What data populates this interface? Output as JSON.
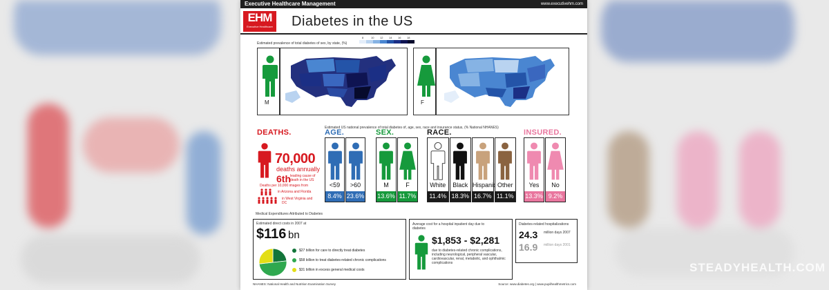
{
  "header": {
    "brand": "Executive Healthcare Management",
    "url": "www.executivehm.com"
  },
  "logo": {
    "text": "EHM",
    "subtext": "Executive Healthcare"
  },
  "title": "Diabetes in the US",
  "maps": {
    "caption": "Estimated prevalence of total diabetes of sex, by state, (%)",
    "scale_ticks": [
      "8",
      "10",
      "12",
      "14",
      "16",
      "18"
    ],
    "scale_colors": [
      "#e4eefa",
      "#b9d3f0",
      "#86b3e4",
      "#4a86d1",
      "#2454a8",
      "#1b2f85",
      "#0f1452",
      "#070a2c"
    ],
    "male_label": "M",
    "female_label": "F"
  },
  "deaths": {
    "heading": "DEATHS.",
    "number": "70,000",
    "annual": "deaths annually",
    "rank": "6th",
    "rank_text": "leading cause of death in the US",
    "equiv": "Deaths per 10,000 images from",
    "place1": "in Arizona and Florida",
    "place2": "in West Virginia and DC"
  },
  "prevalence_caption": "Estimated US national prevalence of total diabetes of, age, sex, race and insurance status, (% National NHANES)",
  "groups": {
    "age": {
      "heading": "AGE.",
      "color": "#2f6db5",
      "items": [
        {
          "label": "<59",
          "value": "8.4%"
        },
        {
          "label": ">60",
          "value": "23.6%"
        }
      ]
    },
    "sex": {
      "heading": "SEX.",
      "color": "#169a3c",
      "items": [
        {
          "label": "M",
          "value": "13.6%"
        },
        {
          "label": "F",
          "value": "11.7%"
        }
      ]
    },
    "race": {
      "heading": "RACE.",
      "color": "#1a1a1a",
      "items": [
        {
          "label": "White",
          "value": "11.4%"
        },
        {
          "label": "Black",
          "value": "18.3%"
        },
        {
          "label": "Hispanic",
          "value": "16.7%"
        },
        {
          "label": "Other",
          "value": "11.1%"
        }
      ]
    },
    "insured": {
      "heading": "INSURED.",
      "color": "#e9769e",
      "items": [
        {
          "label": "Yes",
          "value": "13.3%"
        },
        {
          "label": "No",
          "value": "9.2%"
        }
      ]
    }
  },
  "expenditures": {
    "caption": "Medical Expenditures Attributed to Diabetes",
    "direct_caption": "Estimated direct costs in 2007 at",
    "direct_value": "$116",
    "direct_unit": "bn",
    "breakdown": [
      {
        "text": "$27 billion for care to directly treat diabetes",
        "color": "#13753a"
      },
      {
        "text": "$58 billion to treat diabetes-related chronic complications",
        "color": "#2fa84f"
      },
      {
        "text": "$31 billion in excess general medical costs",
        "color": "#e3de16"
      }
    ],
    "pie": [
      27,
      58,
      31
    ]
  },
  "hospital": {
    "caption": "Average cost for a hospital inpatient day due to diabetes",
    "range": "$1,853 - $2,281",
    "note": "due to diabetes-related chronic complications, including neurological, peripheral vascular, cardiovascular, renal, metabolic, and ophthalmic complications"
  },
  "hospitalizations": {
    "caption": "Diabetes-related hospitalizations",
    "v1": "24.3",
    "v1_sub": "million days 2007",
    "v2": "16.9",
    "v2_sub": "million days 2001"
  },
  "footer": {
    "left": "NHANES: National Health and Nutrition Examination Survey",
    "right": "Source: www.diabetes.org | www.pupilhealthmetrics.com"
  },
  "watermark": "STEADYHEALTH.COM",
  "colors": {
    "red": "#d71920",
    "green": "#169a3c",
    "blue": "#2f6db5",
    "pink": "#e9769e"
  }
}
